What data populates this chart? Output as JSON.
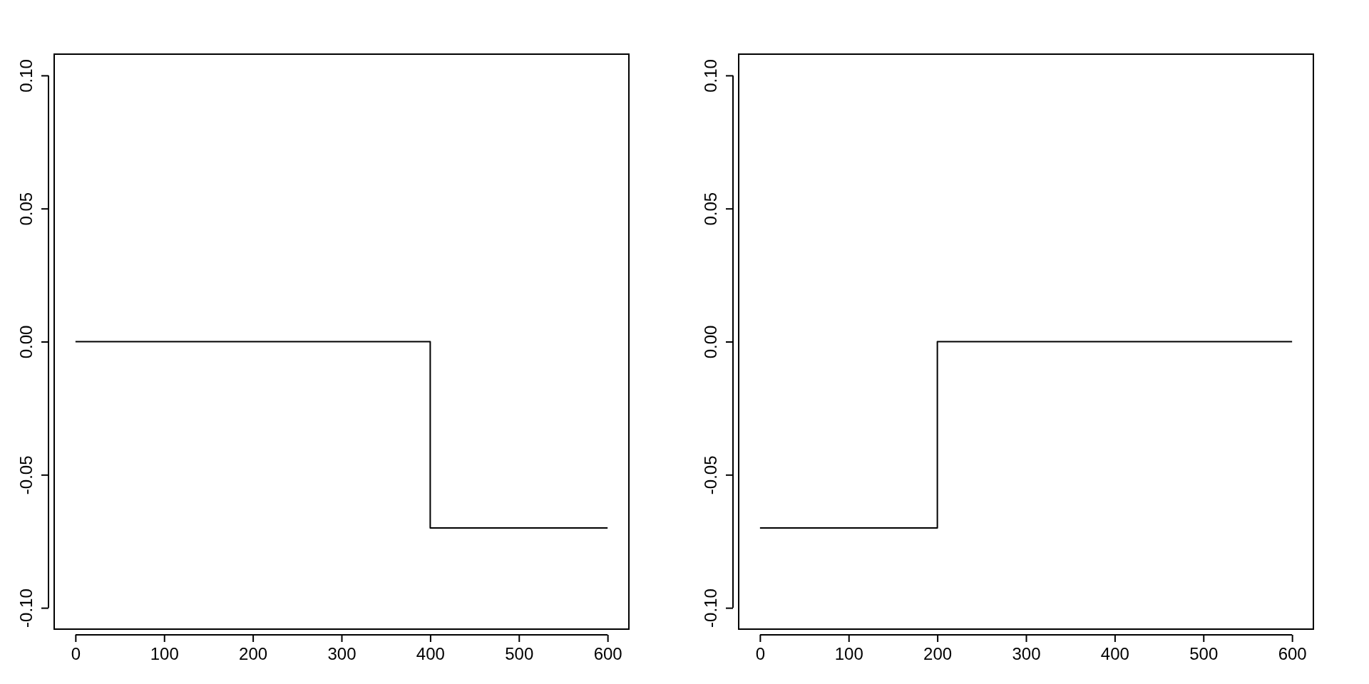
{
  "chart_data": [
    {
      "type": "step",
      "x": [
        0,
        400,
        600
      ],
      "values": [
        0,
        -0.07,
        -0.07
      ],
      "color": "#000000",
      "xlim": [
        -24,
        624
      ],
      "ylim": [
        -0.108,
        0.108
      ],
      "xticks": [
        0,
        100,
        200,
        300,
        400,
        500,
        600
      ],
      "yticks": [
        {
          "value": -0.1,
          "label": "-0.10"
        },
        {
          "value": -0.05,
          "label": "-0.05"
        },
        {
          "value": 0,
          "label": "0.00"
        },
        {
          "value": 0.05,
          "label": "0.05"
        },
        {
          "value": 0.1,
          "label": "0.10"
        }
      ],
      "grid": false
    },
    {
      "type": "step",
      "x": [
        0,
        200,
        600
      ],
      "values": [
        -0.07,
        0,
        0
      ],
      "color": "#000000",
      "xlim": [
        -24,
        624
      ],
      "ylim": [
        -0.108,
        0.108
      ],
      "xticks": [
        0,
        100,
        200,
        300,
        400,
        500,
        600
      ],
      "yticks": [
        {
          "value": -0.1,
          "label": "-0.10"
        },
        {
          "value": -0.05,
          "label": "-0.05"
        },
        {
          "value": 0,
          "label": "0.00"
        },
        {
          "value": 0.05,
          "label": "0.05"
        },
        {
          "value": 0.1,
          "label": "0.10"
        }
      ],
      "grid": false
    }
  ]
}
